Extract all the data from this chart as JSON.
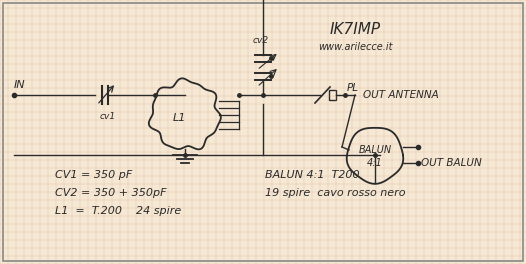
{
  "bg_color": "#f5e8d5",
  "grid_color": "#d4956a",
  "line_color": "#2a2a2a",
  "title1": "IK7IMP",
  "title2": "www.arilecce.it",
  "label_in": "IN",
  "label_cv1": "cv1",
  "label_cv2": "cv2",
  "label_l1": "L1",
  "label_pl": "PL",
  "label_out_antenna": "OUT ANTENNA",
  "label_out_balun": "OUT BALUN",
  "label_balun_line1": "BALUN",
  "label_balun_line2": "4:1",
  "info1": "CV1 = 350 pF",
  "info2": "CV2 = 350 + 350pF",
  "info3": "L1  =  T.200    24 spire",
  "info4": "BALUN 4:1  T200",
  "info5": "19 spire  cavo rosso nero",
  "border_color": "#888888",
  "figsize": [
    5.26,
    2.64
  ],
  "dpi": 100
}
